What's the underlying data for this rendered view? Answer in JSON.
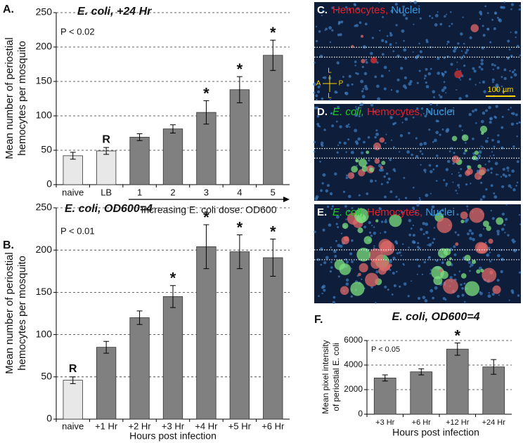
{
  "chart_data": [
    {
      "type": "bar",
      "panel": "A.",
      "title": "E. coli, +24 Hr",
      "annotation": "P < 0.02",
      "ylabel": [
        "Mean number of periostial",
        "hemocytes per mosquito"
      ],
      "xlabel": "Increasing E. coli dose: OD600",
      "categories": [
        "naive",
        "LB",
        "1",
        "2",
        "3",
        "4",
        "5"
      ],
      "values": [
        42,
        49,
        69,
        81,
        105,
        138,
        188
      ],
      "errors": [
        5,
        5,
        5,
        6,
        17,
        19,
        22
      ],
      "colors": [
        "#e8e8e8",
        "#e8e8e8",
        "#808080",
        "#808080",
        "#808080",
        "#808080",
        "#808080"
      ],
      "markers": [
        null,
        "R",
        null,
        null,
        "*",
        "*",
        "*"
      ],
      "ylim": [
        0,
        250
      ],
      "yticks": [
        0,
        50,
        100,
        150,
        200,
        250
      ],
      "grid": true
    },
    {
      "type": "bar",
      "panel": "B.",
      "title": "E. coli, OD600=4",
      "annotation": "P < 0.01",
      "ylabel": [
        "Mean number of periostial",
        "hemocytes per mosquito"
      ],
      "xlabel": "Hours post infection",
      "categories": [
        "naive",
        "+1 Hr",
        "+2 Hr",
        "+3 Hr",
        "+4 Hr",
        "+5 Hr",
        "+6 Hr"
      ],
      "values": [
        46,
        85,
        120,
        145,
        204,
        198,
        191
      ],
      "errors": [
        4,
        7,
        8,
        13,
        26,
        20,
        22
      ],
      "colors": [
        "#e8e8e8",
        "#808080",
        "#808080",
        "#808080",
        "#808080",
        "#808080",
        "#808080"
      ],
      "markers": [
        "R",
        null,
        null,
        "*",
        "*",
        "*",
        "*"
      ],
      "ylim": [
        0,
        250
      ],
      "yticks": [
        0,
        50,
        100,
        150,
        200,
        250
      ],
      "grid": true
    },
    {
      "type": "bar",
      "panel": "F.",
      "title": "E. coli, OD600=4",
      "annotation": "P < 0.05",
      "ylabel": [
        "Mean pixel intensity",
        "of periostial E. coli"
      ],
      "xlabel": "Hours post infection",
      "categories": [
        "+3 Hr",
        "+6 Hr",
        "+12 Hr",
        "+24 Hr"
      ],
      "values": [
        2950,
        3450,
        5300,
        3850
      ],
      "errors": [
        250,
        250,
        500,
        600
      ],
      "colors": [
        "#808080",
        "#808080",
        "#808080",
        "#808080"
      ],
      "markers": [
        null,
        null,
        "*",
        null
      ],
      "ylim": [
        0,
        6000
      ],
      "yticks": [
        0,
        2000,
        4000,
        6000
      ],
      "grid": true
    }
  ],
  "images": [
    {
      "label": "C.",
      "legend": [
        {
          "text": "Hemocytes,",
          "color": "#e8202a"
        },
        {
          "text": "Nuclei",
          "color": "#3a9be0"
        }
      ],
      "scale_bar": "100 µm",
      "compass": [
        "L",
        "A",
        "P",
        "L"
      ]
    },
    {
      "label": "D.",
      "legend": [
        {
          "text": "E. coli,",
          "color": "#22cc22"
        },
        {
          "text": "Hemocytes,",
          "color": "#e8202a"
        },
        {
          "text": "Nuclei",
          "color": "#3a9be0"
        }
      ]
    },
    {
      "label": "E.",
      "legend": [
        {
          "text": "E. coli,",
          "color": "#22cc22"
        },
        {
          "text": "Hemocytes,",
          "color": "#e8202a"
        },
        {
          "text": "Nuclei",
          "color": "#3a9be0"
        }
      ]
    }
  ]
}
